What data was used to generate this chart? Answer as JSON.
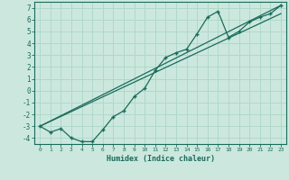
{
  "xlabel": "Humidex (Indice chaleur)",
  "ylabel": "",
  "bg_color": "#cce8de",
  "line_color": "#1a6b5a",
  "grid_color": "#b0d8ca",
  "xlim": [
    -0.5,
    23.5
  ],
  "ylim": [
    -4.5,
    7.5
  ],
  "xticks": [
    0,
    1,
    2,
    3,
    4,
    5,
    6,
    7,
    8,
    9,
    10,
    11,
    12,
    13,
    14,
    15,
    16,
    17,
    18,
    19,
    20,
    21,
    22,
    23
  ],
  "yticks": [
    -4,
    -3,
    -2,
    -1,
    0,
    1,
    2,
    3,
    4,
    5,
    6,
    7
  ],
  "line1_x": [
    0,
    1,
    2,
    3,
    4,
    5,
    6,
    7,
    8,
    9,
    10,
    11,
    12,
    13,
    14,
    15,
    16,
    17,
    18,
    19,
    20,
    21,
    22,
    23
  ],
  "line1_y": [
    -3.0,
    -3.5,
    -3.2,
    -4.0,
    -4.3,
    -4.3,
    -3.3,
    -2.2,
    -1.7,
    -0.5,
    0.2,
    1.7,
    2.8,
    3.2,
    3.5,
    4.8,
    6.2,
    6.7,
    4.5,
    5.0,
    5.8,
    6.2,
    6.5,
    7.2
  ],
  "line2_x": [
    0,
    23
  ],
  "line2_y": [
    -3.0,
    7.2
  ],
  "line3_x": [
    0,
    23
  ],
  "line3_y": [
    -3.0,
    6.5
  ]
}
